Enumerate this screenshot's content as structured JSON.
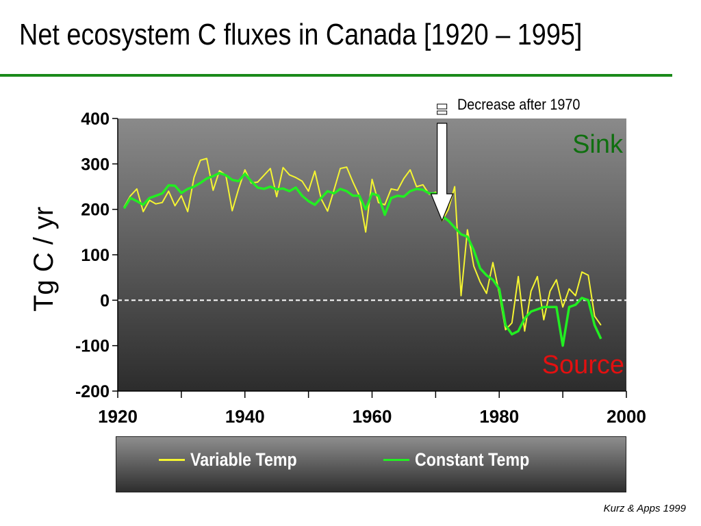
{
  "slide": {
    "title": "Net ecosystem C fluxes in Canada [1920 – 1995]",
    "credit": "Kurz & Apps 1999",
    "title_rule_color": "#1a8a1a"
  },
  "chart_data": {
    "type": "line",
    "ylabel": "Tg C / yr",
    "xlim": [
      1920,
      2000
    ],
    "ylim": [
      -200,
      400
    ],
    "x_ticks": [
      1920,
      1940,
      1960,
      1980,
      2000
    ],
    "y_ticks": [
      400,
      300,
      200,
      100,
      0,
      -100,
      -200
    ],
    "x_tick_labels": [
      "1920",
      "1940",
      "1960",
      "1980",
      "2000"
    ],
    "y_tick_labels": [
      "400",
      "300",
      "200",
      "100",
      "0",
      "-100",
      "-200"
    ],
    "zero_line": "dashed",
    "background": "dark gray gradient",
    "annotations": {
      "arrow": {
        "label": "Decrease after 1970",
        "year": 1971,
        "from_value": 430,
        "to_value": 175
      },
      "sink_label": "Sink",
      "source_label": "Source"
    },
    "legend": {
      "placement": "bottom-box"
    },
    "series": [
      {
        "name": "Variable Temp",
        "color": "#f5f531",
        "x": [
          1921,
          1922,
          1923,
          1924,
          1925,
          1926,
          1927,
          1928,
          1929,
          1930,
          1931,
          1932,
          1933,
          1934,
          1935,
          1936,
          1937,
          1938,
          1939,
          1940,
          1941,
          1942,
          1943,
          1944,
          1945,
          1946,
          1947,
          1948,
          1949,
          1950,
          1951,
          1952,
          1953,
          1954,
          1955,
          1956,
          1957,
          1958,
          1959,
          1960,
          1961,
          1962,
          1963,
          1964,
          1965,
          1966,
          1967,
          1968,
          1969,
          1970,
          1971,
          1972,
          1973,
          1974,
          1975,
          1976,
          1977,
          1978,
          1979,
          1980,
          1981,
          1982,
          1983,
          1984,
          1985,
          1986,
          1987,
          1988,
          1989,
          1990,
          1991,
          1992,
          1993,
          1994,
          1995,
          1996
        ],
        "values": [
          205,
          230,
          245,
          195,
          220,
          212,
          215,
          240,
          208,
          230,
          195,
          270,
          308,
          312,
          242,
          285,
          275,
          197,
          245,
          287,
          258,
          260,
          275,
          290,
          228,
          292,
          276,
          270,
          262,
          240,
          284,
          223,
          196,
          242,
          290,
          293,
          260,
          230,
          150,
          266,
          215,
          210,
          245,
          242,
          268,
          287,
          250,
          254,
          233,
          238,
          175,
          200,
          250,
          10,
          155,
          75,
          40,
          15,
          83,
          15,
          -65,
          -50,
          52,
          -68,
          20,
          52,
          -43,
          20,
          45,
          -15,
          25,
          10,
          62,
          55,
          -35,
          -55
        ]
      },
      {
        "name": "Constant Temp",
        "color": "#22ee22",
        "x": [
          1921,
          1922,
          1923,
          1924,
          1925,
          1926,
          1927,
          1928,
          1929,
          1930,
          1931,
          1932,
          1933,
          1934,
          1935,
          1936,
          1937,
          1938,
          1939,
          1940,
          1941,
          1942,
          1943,
          1944,
          1945,
          1946,
          1947,
          1948,
          1949,
          1950,
          1951,
          1952,
          1953,
          1954,
          1955,
          1956,
          1957,
          1958,
          1959,
          1960,
          1961,
          1962,
          1963,
          1964,
          1965,
          1966,
          1967,
          1968,
          1969,
          1970,
          1971,
          1972,
          1973,
          1974,
          1975,
          1976,
          1977,
          1978,
          1979,
          1980,
          1981,
          1982,
          1983,
          1984,
          1985,
          1986,
          1987,
          1988,
          1989,
          1990,
          1991,
          1992,
          1993,
          1994,
          1995,
          1996
        ],
        "values": [
          202,
          225,
          218,
          210,
          225,
          230,
          235,
          253,
          252,
          236,
          245,
          250,
          258,
          268,
          273,
          280,
          275,
          265,
          262,
          278,
          262,
          248,
          245,
          250,
          244,
          246,
          240,
          248,
          230,
          218,
          210,
          225,
          240,
          235,
          245,
          240,
          230,
          230,
          200,
          235,
          230,
          188,
          225,
          230,
          228,
          240,
          245,
          243,
          235,
          235,
          185,
          175,
          160,
          145,
          140,
          110,
          70,
          55,
          45,
          25,
          -55,
          -75,
          -68,
          -40,
          -25,
          -20,
          -15,
          -15,
          -15,
          -100,
          -15,
          -10,
          5,
          0,
          -55,
          -85
        ]
      }
    ]
  }
}
